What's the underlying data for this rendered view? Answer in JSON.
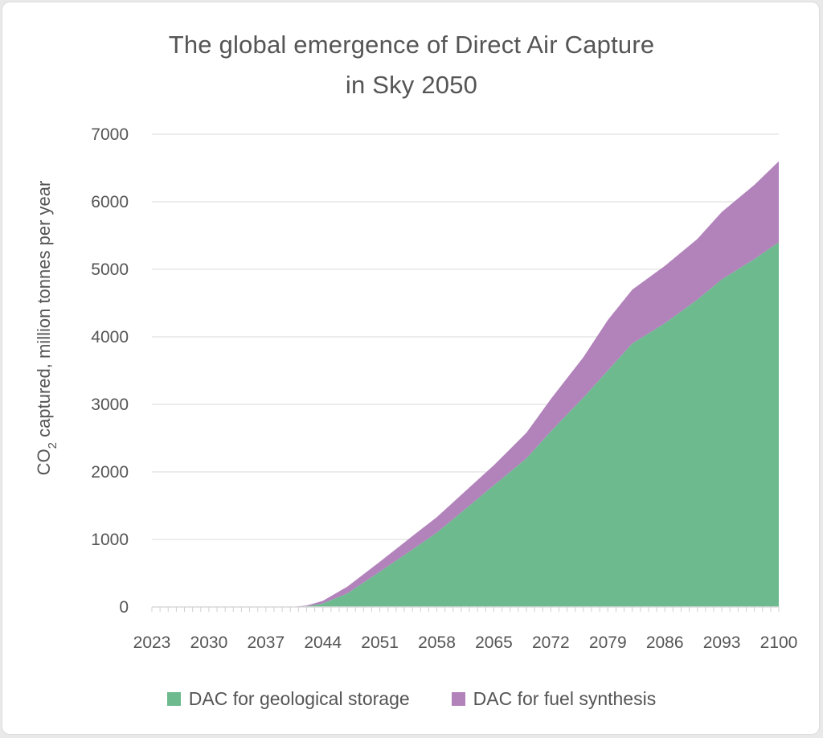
{
  "chart_data": {
    "type": "area",
    "stacked": true,
    "title_line1": "The global emergence of Direct Air Capture",
    "title_line2": "in Sky 2050",
    "ylabel_prefix": "CO",
    "ylabel_sub": "2",
    "ylabel_suffix": " captured, million tonnes per year",
    "xlabel": "",
    "x_tick_labels": [
      "2023",
      "2030",
      "2037",
      "2044",
      "2051",
      "2058",
      "2065",
      "2072",
      "2079",
      "2086",
      "2093",
      "2100"
    ],
    "y_tick_labels": [
      "0",
      "1000",
      "2000",
      "3000",
      "4000",
      "5000",
      "6000",
      "7000"
    ],
    "xlim": [
      2023,
      2100
    ],
    "ylim": [
      0,
      7000
    ],
    "grid": "horizontal",
    "legend_position": "bottom",
    "x": [
      2023,
      2030,
      2037,
      2040,
      2042,
      2044,
      2047,
      2051,
      2055,
      2058,
      2062,
      2065,
      2069,
      2072,
      2076,
      2079,
      2082,
      2086,
      2090,
      2093,
      2097,
      2100
    ],
    "series": [
      {
        "name": "DAC for geological storage",
        "color": "#6dba8f",
        "values": [
          0,
          0,
          0,
          0,
          10,
          50,
          200,
          520,
          850,
          1100,
          1500,
          1800,
          2200,
          2600,
          3100,
          3500,
          3900,
          4200,
          4550,
          4850,
          5150,
          5400
        ]
      },
      {
        "name": "DAC for fuel synthesis",
        "color": "#b283bb",
        "values": [
          0,
          0,
          0,
          0,
          10,
          40,
          100,
          150,
          200,
          230,
          270,
          300,
          380,
          480,
          600,
          750,
          800,
          850,
          900,
          1000,
          1100,
          1200
        ]
      }
    ]
  }
}
